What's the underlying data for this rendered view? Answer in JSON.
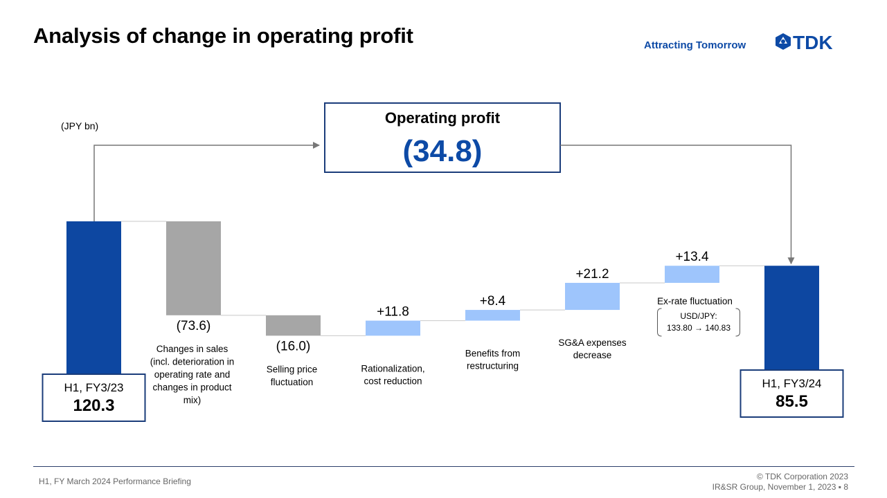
{
  "header": {
    "title": "Analysis of change in operating profit",
    "tagline": "Attracting Tomorrow",
    "logo_text": "TDK"
  },
  "chart_data": {
    "type": "bar",
    "subtype": "waterfall",
    "unit_label": "(JPY bn)",
    "colors": {
      "endpoint": "#0d47a1",
      "decrease": "#a6a6a6",
      "increase": "#9ec5fc",
      "box_border": "#1a3c7a",
      "summary_value": "#0d4aa6"
    },
    "start": {
      "label": "H1, FY3/23",
      "value": 120.3,
      "value_text": "120.3"
    },
    "end": {
      "label": "H1, FY3/24",
      "value": 85.5,
      "value_text": "85.5"
    },
    "steps": [
      {
        "label_lines": [
          "Changes in sales",
          "(incl. deterioration in",
          "operating rate and",
          "changes in product",
          "mix)"
        ],
        "value": -73.6,
        "value_text": "(73.6)"
      },
      {
        "label_lines": [
          "Selling price",
          "fluctuation"
        ],
        "value": -16.0,
        "value_text": "(16.0)"
      },
      {
        "label_lines": [
          "Rationalization,",
          "cost reduction"
        ],
        "value": 11.8,
        "value_text": "+11.8"
      },
      {
        "label_lines": [
          "Benefits from",
          "restructuring"
        ],
        "value": 8.4,
        "value_text": "+8.4"
      },
      {
        "label_lines": [
          "SG&A expenses",
          "decrease"
        ],
        "value": 21.2,
        "value_text": "+21.2"
      },
      {
        "label_lines": [
          "Ex-rate fluctuation"
        ],
        "value": 13.4,
        "value_text": "+13.4",
        "note_lines": [
          "USD/JPY:",
          "133.80 → 140.83"
        ]
      }
    ],
    "summary": {
      "title": "Operating profit",
      "value": -34.8,
      "value_text": "(34.8)"
    }
  },
  "footer": {
    "left": "H1, FY March 2024 Performance Briefing",
    "right_line1": "© TDK Corporation 2023",
    "right_line2": "IR&SR Group, November 1, 2023 ▪ 8"
  }
}
